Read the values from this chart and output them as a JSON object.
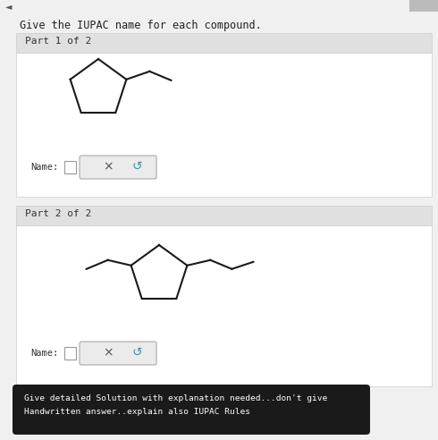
{
  "bg_color": "#f0f0f0",
  "white_bg": "#ffffff",
  "header_text": "Give the IUPAC name for each compound.",
  "part1_label": "Part 1 of 2",
  "part2_label": "Part 2 of 2",
  "name_label": "Name:",
  "tooltip_line1": "Give detailed Solution with explanation needed...don't give",
  "tooltip_line2": "Handwritten answer..explain also IUPAC Rules",
  "tooltip_bg": "#1a1a1a",
  "tooltip_text_color": "#ffffff",
  "panel_bg": "#e0e0e0",
  "white_bg2": "#ffffff",
  "button_bg": "#ebebeb",
  "button_border": "#aaaaaa",
  "line_color": "#1a1a1a",
  "header_font_size": 8.5,
  "label_font_size": 8.0,
  "name_font_size": 7.5,
  "scrollbar_color": "#bbbbbb",
  "text_color": "#333333",
  "button_x_color": "#555555",
  "button_refresh_color": "#4a90a4"
}
